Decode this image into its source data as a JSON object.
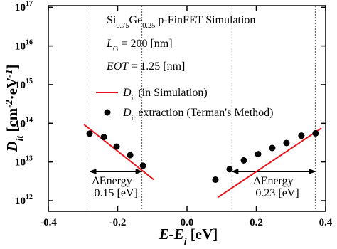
{
  "chart_data": {
    "type": "scatter",
    "x_label": [
      {
        "text": "E-E"
      },
      {
        "text": "i",
        "style": "sub"
      },
      {
        "text": " [eV]",
        "style": "upright"
      }
    ],
    "y_label": [
      {
        "text": "D"
      },
      {
        "text": "it",
        "style": "sub"
      },
      {
        "text": " [cm",
        "style": "upright"
      },
      {
        "text": "-2",
        "style": "sup"
      },
      {
        "text": "·eV",
        "style": "upright"
      },
      {
        "text": "-1",
        "style": "sup"
      },
      {
        "text": "]",
        "style": "upright"
      }
    ],
    "xlim": [
      -0.4,
      0.4
    ],
    "xticks": [
      -0.4,
      -0.2,
      {
        "value": 0,
        "label": "0.0"
      },
      0.2,
      0.4
    ],
    "ylim": [
      530000000000.0,
      1.1e+17
    ],
    "log_y": true,
    "yticks": [
      {
        "value": 1000000000000.0,
        "label": "10",
        "exp": "12"
      },
      {
        "value": 10000000000000.0,
        "label": "10",
        "exp": "13"
      },
      {
        "value": 100000000000000.0,
        "label": "10",
        "exp": "14"
      },
      {
        "value": 1000000000000000.0,
        "label": "10",
        "exp": "15"
      },
      {
        "value": 1e+16,
        "label": "10",
        "exp": "16"
      },
      {
        "value": 1e+17,
        "label": "10",
        "exp": "17"
      }
    ],
    "series": [
      {
        "name": [
          {
            "text": "D",
            "style": "italic"
          },
          {
            "text": "it",
            "style": "sub"
          },
          {
            "text": " (in Simulation)"
          }
        ],
        "type": "line",
        "color": "#e8141c",
        "x": [
          -0.297,
          -0.096,
          null,
          0.088,
          0.388
        ],
        "values": [
          93000000000000.0,
          3500000000000.0,
          null,
          1200000000000.0,
          75000000000000.0
        ]
      },
      {
        "name": [
          {
            "text": "D",
            "style": "italic"
          },
          {
            "text": "it",
            "style": "sub"
          },
          {
            "text": " extraction (Terman's Method)"
          }
        ],
        "type": "scatter",
        "color": "#000000",
        "x": [
          -0.281,
          -0.24,
          -0.203,
          -0.164,
          -0.127,
          0.082,
          0.123,
          0.164,
          0.205,
          0.246,
          0.287,
          0.33,
          0.371
        ],
        "values": [
          54000000000000.0,
          44000000000000.0,
          25000000000000.0,
          15000000000000.0,
          8000000000000.0,
          3500000000000.0,
          6500000000000.0,
          11000000000000.0,
          16000000000000.0,
          23000000000000.0,
          31000000000000.0,
          48000000000000.0,
          55000000000000.0
        ]
      }
    ],
    "vlines": [
      -0.28,
      -0.13,
      0.13,
      0.37
    ],
    "annotations": [
      [
        {
          "text": "Si"
        },
        {
          "text": "0.75",
          "style": "sub"
        },
        {
          "text": "Ge"
        },
        {
          "text": "0.25",
          "style": "sub"
        },
        {
          "text": " p-FinFET Simulation"
        }
      ],
      [
        {
          "text": "L",
          "style": "italic"
        },
        {
          "text": "G",
          "style": "sub"
        },
        {
          "text": " = 200 [nm]"
        }
      ],
      [
        {
          "text": "EOT",
          "style": "italic"
        },
        {
          "text": " = 1.25 [nm]"
        }
      ]
    ],
    "ranges": [
      {
        "label": "ΔEnergy",
        "value_label": "0.15 [eV]"
      },
      {
        "label": "ΔEnergy",
        "value_label": "0.23 [eV]"
      }
    ]
  }
}
